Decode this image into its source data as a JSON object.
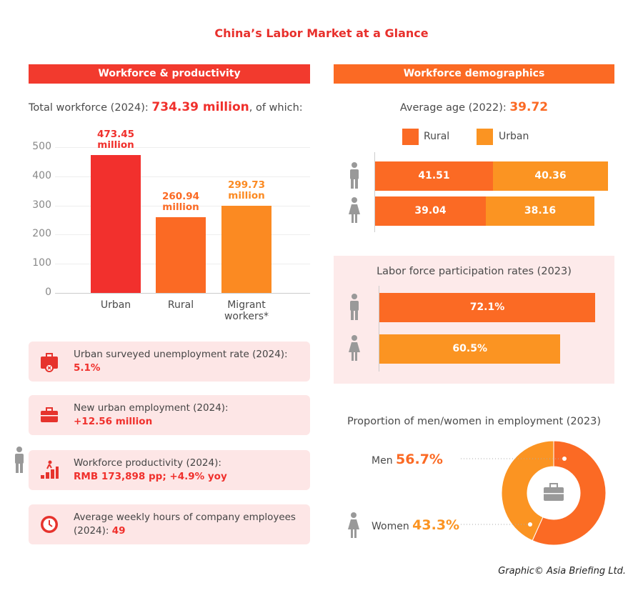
{
  "title": "China’s Labor Market at a Glance",
  "left_header": "Workforce & productivity",
  "right_header": "Workforce demographics",
  "total": {
    "prefix": "Total workforce (2024): ",
    "value": "734.39 million",
    "suffix": ", of which:"
  },
  "colors": {
    "red": "#f2302d",
    "rural": "#fb6a24",
    "urban": "#fb9422",
    "card_bg": "#fde6e6"
  },
  "chart_data": [
    {
      "type": "bar",
      "title": "Total workforce (2024)",
      "categories": [
        "Urban",
        "Rural",
        "Migrant workers*"
      ],
      "category_lines": [
        [
          "Urban"
        ],
        [
          "Rural"
        ],
        [
          "Migrant",
          "workers*"
        ]
      ],
      "values": [
        473.45,
        260.94,
        299.73
      ],
      "labels": [
        [
          "473.45",
          "million"
        ],
        [
          "260.94",
          "million"
        ],
        [
          "299.73",
          "million"
        ]
      ],
      "bar_colors": [
        "#f2302d",
        "#fb6a24",
        "#fb8a22"
      ],
      "ylim": [
        0,
        500
      ],
      "yticks": [
        "0",
        "100",
        "200",
        "300",
        "400",
        "500"
      ],
      "grid": true
    },
    {
      "type": "bar",
      "orientation": "horizontal-stacked",
      "title": "Average age (2022)",
      "series": [
        {
          "name": "Rural",
          "values": [
            41.51,
            39.04
          ]
        },
        {
          "name": "Urban",
          "values": [
            40.36,
            38.16
          ]
        }
      ],
      "categories": [
        "Men",
        "Women"
      ],
      "labels": [
        [
          "41.51",
          "40.36"
        ],
        [
          "39.04",
          "38.16"
        ]
      ]
    },
    {
      "type": "bar",
      "orientation": "horizontal",
      "title": "Labor force participation rates (2023)",
      "categories": [
        "Men",
        "Women"
      ],
      "values": [
        72.1,
        60.5
      ],
      "labels": [
        "72.1%",
        "60.5%"
      ]
    },
    {
      "type": "pie",
      "title": "Proportion of men/women in employment (2023)",
      "categories": [
        "Men",
        "Women"
      ],
      "values": [
        56.7,
        43.3
      ],
      "labels": [
        "56.7%",
        "43.3%"
      ]
    }
  ],
  "avg_age": {
    "label": "Average age (2022): ",
    "value": "39.72",
    "legend": [
      "Rural",
      "Urban"
    ]
  },
  "cards": [
    {
      "icon": "briefcase-x-icon",
      "label": "Urban surveyed unemployment rate (2024):",
      "value": "5.1%"
    },
    {
      "icon": "briefcase-icon",
      "label": "New urban employment (2024):",
      "value": "+12.56 million"
    },
    {
      "icon": "productivity-stairs-icon",
      "label": "Workforce productivity (2024):",
      "value": "RMB 173,898 pp; +4.9% yoy"
    },
    {
      "icon": "clock-icon",
      "label": "Average weekly hours of company employees",
      "label2": "(2024): ",
      "value": "49"
    }
  ],
  "pie_legend": {
    "men": "Men",
    "women": "Women"
  },
  "credit": "Graphic© Asia Briefing Ltd."
}
